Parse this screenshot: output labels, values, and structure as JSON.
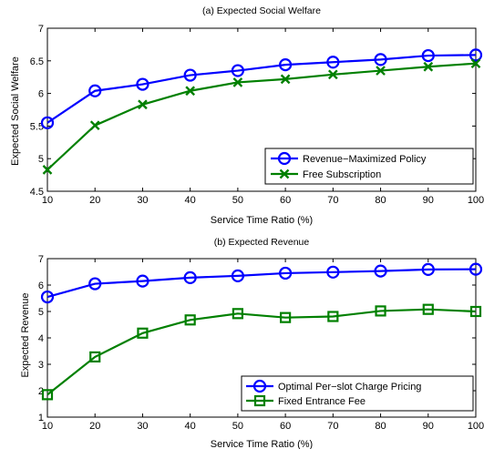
{
  "chart_data": [
    {
      "type": "line",
      "title": "(a) Expected Social Welfare",
      "xlabel": "Service Time Ratio (%)",
      "ylabel": "Expected Social Welfare",
      "x": [
        10,
        20,
        30,
        40,
        50,
        60,
        70,
        80,
        90,
        100
      ],
      "xlim": [
        10,
        100
      ],
      "ylim": [
        4.5,
        7
      ],
      "xticks": [
        "10",
        "20",
        "30",
        "40",
        "50",
        "60",
        "70",
        "80",
        "90",
        "100"
      ],
      "yticks": [
        "4.5",
        "5",
        "5.5",
        "6",
        "6.5",
        "7"
      ],
      "ytick_values": [
        4.5,
        5,
        5.5,
        6,
        6.5,
        7
      ],
      "grid": false,
      "legend_position": "bottom-right",
      "series": [
        {
          "name": "Revenue−Maximized Policy",
          "color": "#0000ff",
          "marker": "circle",
          "values": [
            5.55,
            6.04,
            6.14,
            6.28,
            6.35,
            6.44,
            6.48,
            6.52,
            6.58,
            6.59
          ]
        },
        {
          "name": "Free Subscription",
          "color": "#008000",
          "marker": "x",
          "values": [
            4.83,
            5.51,
            5.83,
            6.04,
            6.17,
            6.22,
            6.29,
            6.35,
            6.41,
            6.46
          ]
        }
      ]
    },
    {
      "type": "line",
      "title": "(b) Expected Revenue",
      "xlabel": "Service Time Ratio (%)",
      "ylabel": "Expected Revenue",
      "x": [
        10,
        20,
        30,
        40,
        50,
        60,
        70,
        80,
        90,
        100
      ],
      "xlim": [
        10,
        100
      ],
      "ylim": [
        1,
        7
      ],
      "xticks": [
        "10",
        "20",
        "30",
        "40",
        "50",
        "60",
        "70",
        "80",
        "90",
        "100"
      ],
      "yticks": [
        "1",
        "2",
        "3",
        "4",
        "5",
        "6",
        "7"
      ],
      "ytick_values": [
        1,
        2,
        3,
        4,
        5,
        6,
        7
      ],
      "grid": false,
      "legend_position": "bottom-right",
      "series": [
        {
          "name": "Optimal Per−slot Charge Pricing",
          "color": "#0000ff",
          "marker": "circle",
          "values": [
            5.55,
            6.05,
            6.15,
            6.28,
            6.35,
            6.45,
            6.49,
            6.53,
            6.59,
            6.6
          ]
        },
        {
          "name": "Fixed Entrance Fee",
          "color": "#008000",
          "marker": "square",
          "values": [
            1.85,
            3.28,
            4.18,
            4.68,
            4.92,
            4.77,
            4.81,
            5.02,
            5.08,
            5.0
          ]
        }
      ]
    }
  ]
}
